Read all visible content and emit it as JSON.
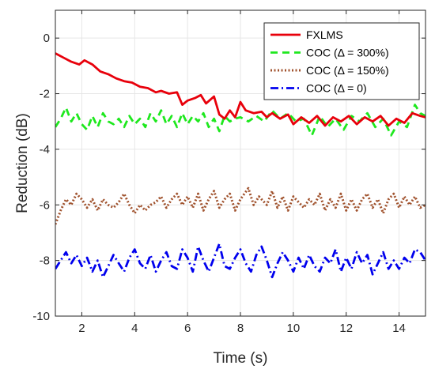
{
  "chart_data": {
    "type": "line",
    "title": "",
    "xlabel": "Time (s)",
    "ylabel": "Reduction (dB)",
    "xlim": [
      1,
      15
    ],
    "ylim": [
      -10,
      1
    ],
    "xticks": [
      2,
      4,
      6,
      8,
      10,
      12,
      14
    ],
    "xtick_labels": [
      "2",
      "4",
      "6",
      "8",
      "10",
      "12",
      "14"
    ],
    "yticks": [
      0,
      -2,
      -4,
      -6,
      -8,
      -10
    ],
    "ytick_labels": [
      "0",
      "-2",
      "-4",
      "-6",
      "-8",
      "-10"
    ],
    "grid": true,
    "legend_position": "top-right",
    "series": [
      {
        "name": "FXLMS",
        "color": "#e8000b",
        "style": "solid",
        "points": [
          [
            1.0,
            -0.55
          ],
          [
            1.3,
            -0.7
          ],
          [
            1.6,
            -0.85
          ],
          [
            1.9,
            -0.95
          ],
          [
            2.1,
            -0.8
          ],
          [
            2.4,
            -0.95
          ],
          [
            2.7,
            -1.2
          ],
          [
            3.0,
            -1.3
          ],
          [
            3.3,
            -1.45
          ],
          [
            3.6,
            -1.55
          ],
          [
            3.9,
            -1.6
          ],
          [
            4.2,
            -1.75
          ],
          [
            4.5,
            -1.8
          ],
          [
            4.8,
            -1.95
          ],
          [
            5.0,
            -1.9
          ],
          [
            5.3,
            -2.0
          ],
          [
            5.6,
            -1.95
          ],
          [
            5.8,
            -2.4
          ],
          [
            6.0,
            -2.25
          ],
          [
            6.3,
            -2.15
          ],
          [
            6.5,
            -2.05
          ],
          [
            6.7,
            -2.35
          ],
          [
            7.0,
            -2.1
          ],
          [
            7.2,
            -2.75
          ],
          [
            7.4,
            -2.9
          ],
          [
            7.6,
            -2.6
          ],
          [
            7.8,
            -2.85
          ],
          [
            8.0,
            -2.3
          ],
          [
            8.2,
            -2.6
          ],
          [
            8.5,
            -2.7
          ],
          [
            8.8,
            -2.65
          ],
          [
            9.0,
            -2.85
          ],
          [
            9.2,
            -2.7
          ],
          [
            9.5,
            -2.9
          ],
          [
            9.8,
            -2.75
          ],
          [
            10.0,
            -3.1
          ],
          [
            10.3,
            -2.85
          ],
          [
            10.6,
            -3.05
          ],
          [
            10.9,
            -2.8
          ],
          [
            11.2,
            -3.15
          ],
          [
            11.5,
            -2.85
          ],
          [
            11.8,
            -3.0
          ],
          [
            12.1,
            -2.8
          ],
          [
            12.4,
            -3.1
          ],
          [
            12.7,
            -2.85
          ],
          [
            13.0,
            -3.0
          ],
          [
            13.3,
            -2.8
          ],
          [
            13.6,
            -3.15
          ],
          [
            13.9,
            -2.9
          ],
          [
            14.2,
            -3.05
          ],
          [
            14.5,
            -2.7
          ],
          [
            14.8,
            -2.8
          ],
          [
            15.0,
            -2.85
          ]
        ]
      },
      {
        "name": "COC (Δ = 300%)",
        "color": "#1ee81e",
        "style": "dashed",
        "points": [
          [
            1.0,
            -3.2
          ],
          [
            1.2,
            -2.9
          ],
          [
            1.4,
            -2.5
          ],
          [
            1.6,
            -3.0
          ],
          [
            1.8,
            -2.7
          ],
          [
            2.0,
            -3.1
          ],
          [
            2.2,
            -3.3
          ],
          [
            2.4,
            -2.8
          ],
          [
            2.6,
            -3.2
          ],
          [
            2.8,
            -2.7
          ],
          [
            3.0,
            -3.0
          ],
          [
            3.2,
            -3.1
          ],
          [
            3.4,
            -2.9
          ],
          [
            3.6,
            -3.2
          ],
          [
            3.8,
            -2.8
          ],
          [
            4.0,
            -3.1
          ],
          [
            4.2,
            -2.9
          ],
          [
            4.4,
            -3.2
          ],
          [
            4.6,
            -2.7
          ],
          [
            4.8,
            -3.0
          ],
          [
            5.0,
            -2.6
          ],
          [
            5.2,
            -3.1
          ],
          [
            5.4,
            -2.8
          ],
          [
            5.6,
            -3.2
          ],
          [
            5.8,
            -2.7
          ],
          [
            6.0,
            -3.1
          ],
          [
            6.2,
            -2.8
          ],
          [
            6.4,
            -3.0
          ],
          [
            6.6,
            -2.7
          ],
          [
            6.8,
            -3.2
          ],
          [
            7.0,
            -2.9
          ],
          [
            7.2,
            -3.35
          ],
          [
            7.4,
            -2.8
          ],
          [
            7.6,
            -3.0
          ],
          [
            7.8,
            -2.9
          ],
          [
            8.0,
            -2.85
          ],
          [
            8.3,
            -3.0
          ],
          [
            8.6,
            -2.8
          ],
          [
            8.9,
            -3.0
          ],
          [
            9.2,
            -2.6
          ],
          [
            9.5,
            -2.9
          ],
          [
            9.8,
            -2.7
          ],
          [
            10.1,
            -3.0
          ],
          [
            10.4,
            -2.9
          ],
          [
            10.7,
            -3.5
          ],
          [
            11.0,
            -2.8
          ],
          [
            11.3,
            -3.2
          ],
          [
            11.6,
            -2.9
          ],
          [
            11.9,
            -3.3
          ],
          [
            12.2,
            -2.8
          ],
          [
            12.5,
            -3.0
          ],
          [
            12.8,
            -2.7
          ],
          [
            13.1,
            -3.2
          ],
          [
            13.4,
            -2.9
          ],
          [
            13.7,
            -3.5
          ],
          [
            14.0,
            -3.0
          ],
          [
            14.3,
            -3.2
          ],
          [
            14.6,
            -2.4
          ],
          [
            14.8,
            -2.7
          ],
          [
            15.0,
            -2.8
          ]
        ]
      },
      {
        "name": "COC (Δ = 150%)",
        "color": "#a0522d",
        "style": "dotted",
        "points": [
          [
            1.0,
            -6.7
          ],
          [
            1.2,
            -6.2
          ],
          [
            1.4,
            -5.8
          ],
          [
            1.6,
            -6.0
          ],
          [
            1.8,
            -5.6
          ],
          [
            2.0,
            -5.8
          ],
          [
            2.2,
            -6.1
          ],
          [
            2.4,
            -5.8
          ],
          [
            2.6,
            -6.2
          ],
          [
            2.8,
            -5.8
          ],
          [
            3.0,
            -6.0
          ],
          [
            3.2,
            -6.1
          ],
          [
            3.4,
            -5.9
          ],
          [
            3.6,
            -5.6
          ],
          [
            3.8,
            -6.0
          ],
          [
            4.0,
            -6.3
          ],
          [
            4.2,
            -6.0
          ],
          [
            4.4,
            -6.2
          ],
          [
            4.6,
            -6.0
          ],
          [
            4.8,
            -5.9
          ],
          [
            5.0,
            -5.7
          ],
          [
            5.2,
            -6.1
          ],
          [
            5.4,
            -5.8
          ],
          [
            5.6,
            -5.6
          ],
          [
            5.8,
            -6.0
          ],
          [
            6.0,
            -5.7
          ],
          [
            6.2,
            -6.1
          ],
          [
            6.4,
            -5.6
          ],
          [
            6.6,
            -6.2
          ],
          [
            6.8,
            -5.8
          ],
          [
            7.0,
            -5.5
          ],
          [
            7.2,
            -6.1
          ],
          [
            7.4,
            -5.8
          ],
          [
            7.6,
            -5.6
          ],
          [
            7.8,
            -6.2
          ],
          [
            8.0,
            -5.8
          ],
          [
            8.3,
            -5.4
          ],
          [
            8.5,
            -6.0
          ],
          [
            8.7,
            -5.7
          ],
          [
            9.0,
            -6.0
          ],
          [
            9.2,
            -5.5
          ],
          [
            9.4,
            -6.1
          ],
          [
            9.6,
            -5.7
          ],
          [
            9.8,
            -6.2
          ],
          [
            10.0,
            -5.7
          ],
          [
            10.2,
            -5.9
          ],
          [
            10.4,
            -6.1
          ],
          [
            10.6,
            -5.8
          ],
          [
            10.8,
            -6.0
          ],
          [
            11.0,
            -5.6
          ],
          [
            11.2,
            -6.2
          ],
          [
            11.4,
            -5.8
          ],
          [
            11.6,
            -6.1
          ],
          [
            11.8,
            -5.6
          ],
          [
            12.0,
            -6.2
          ],
          [
            12.2,
            -5.8
          ],
          [
            12.4,
            -6.2
          ],
          [
            12.6,
            -5.8
          ],
          [
            12.8,
            -5.6
          ],
          [
            13.0,
            -6.1
          ],
          [
            13.2,
            -5.8
          ],
          [
            13.4,
            -6.3
          ],
          [
            13.6,
            -5.8
          ],
          [
            13.8,
            -5.6
          ],
          [
            14.0,
            -6.1
          ],
          [
            14.2,
            -5.7
          ],
          [
            14.4,
            -6.0
          ],
          [
            14.6,
            -5.7
          ],
          [
            14.8,
            -6.1
          ],
          [
            15.0,
            -6.0
          ]
        ]
      },
      {
        "name": "COC (Δ = 0)",
        "color": "#0000ee",
        "style": "dashdot",
        "points": [
          [
            1.0,
            -8.3
          ],
          [
            1.2,
            -8.0
          ],
          [
            1.4,
            -7.7
          ],
          [
            1.6,
            -8.1
          ],
          [
            1.8,
            -7.8
          ],
          [
            2.0,
            -8.2
          ],
          [
            2.2,
            -7.9
          ],
          [
            2.4,
            -8.4
          ],
          [
            2.6,
            -8.0
          ],
          [
            2.8,
            -8.6
          ],
          [
            3.0,
            -8.2
          ],
          [
            3.2,
            -7.8
          ],
          [
            3.4,
            -8.1
          ],
          [
            3.6,
            -8.4
          ],
          [
            3.8,
            -7.9
          ],
          [
            4.0,
            -7.6
          ],
          [
            4.2,
            -8.1
          ],
          [
            4.4,
            -8.3
          ],
          [
            4.6,
            -7.8
          ],
          [
            4.8,
            -8.4
          ],
          [
            5.0,
            -8.0
          ],
          [
            5.2,
            -7.7
          ],
          [
            5.4,
            -8.2
          ],
          [
            5.6,
            -8.3
          ],
          [
            5.8,
            -7.6
          ],
          [
            6.0,
            -7.9
          ],
          [
            6.2,
            -8.4
          ],
          [
            6.4,
            -7.5
          ],
          [
            6.6,
            -8.0
          ],
          [
            6.8,
            -8.4
          ],
          [
            7.0,
            -7.9
          ],
          [
            7.2,
            -7.4
          ],
          [
            7.4,
            -8.2
          ],
          [
            7.6,
            -8.3
          ],
          [
            7.8,
            -7.9
          ],
          [
            8.0,
            -7.6
          ],
          [
            8.2,
            -8.1
          ],
          [
            8.4,
            -8.4
          ],
          [
            8.6,
            -7.8
          ],
          [
            8.8,
            -7.5
          ],
          [
            9.0,
            -8.0
          ],
          [
            9.2,
            -8.6
          ],
          [
            9.4,
            -8.1
          ],
          [
            9.6,
            -7.7
          ],
          [
            9.8,
            -8.0
          ],
          [
            10.0,
            -8.4
          ],
          [
            10.2,
            -7.9
          ],
          [
            10.4,
            -8.3
          ],
          [
            10.6,
            -7.8
          ],
          [
            10.8,
            -8.2
          ],
          [
            11.0,
            -8.4
          ],
          [
            11.2,
            -7.9
          ],
          [
            11.4,
            -8.1
          ],
          [
            11.6,
            -7.6
          ],
          [
            11.8,
            -8.4
          ],
          [
            12.0,
            -7.9
          ],
          [
            12.2,
            -8.3
          ],
          [
            12.4,
            -7.7
          ],
          [
            12.6,
            -8.1
          ],
          [
            12.8,
            -7.8
          ],
          [
            13.0,
            -8.5
          ],
          [
            13.2,
            -8.1
          ],
          [
            13.4,
            -7.7
          ],
          [
            13.6,
            -8.3
          ],
          [
            13.8,
            -8.0
          ],
          [
            14.0,
            -8.3
          ],
          [
            14.2,
            -7.9
          ],
          [
            14.4,
            -8.1
          ],
          [
            14.6,
            -7.6
          ],
          [
            14.8,
            -7.7
          ],
          [
            15.0,
            -8.0
          ]
        ]
      }
    ]
  }
}
